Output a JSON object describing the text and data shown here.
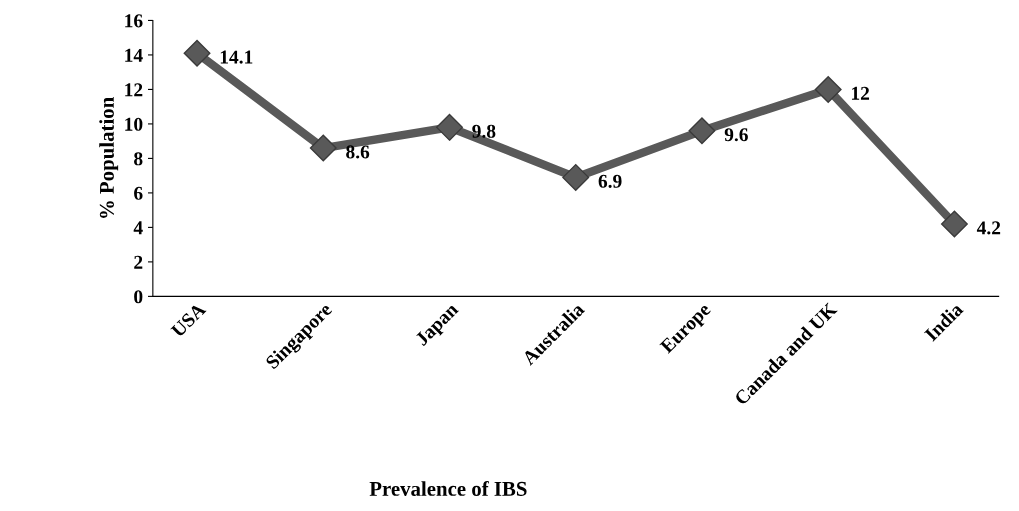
{
  "chart_data": {
    "type": "line",
    "xlabel": "Prevalence of IBS",
    "ylabel": "% Population",
    "categories": [
      "USA",
      "Singapore",
      "Japan",
      "Australia",
      "Europe",
      "Canada and UK",
      "India"
    ],
    "series": [
      {
        "color": "#595959",
        "values": [
          14.1,
          8.6,
          9.8,
          6.9,
          9.6,
          12,
          4.2
        ]
      }
    ],
    "ylim": [
      0,
      16
    ],
    "yticks": [
      0,
      2,
      4,
      6,
      8,
      10,
      12,
      14,
      16
    ],
    "marker": "diamond",
    "line_style": "solid",
    "data_labels": true,
    "grid": false,
    "legend": false
  }
}
